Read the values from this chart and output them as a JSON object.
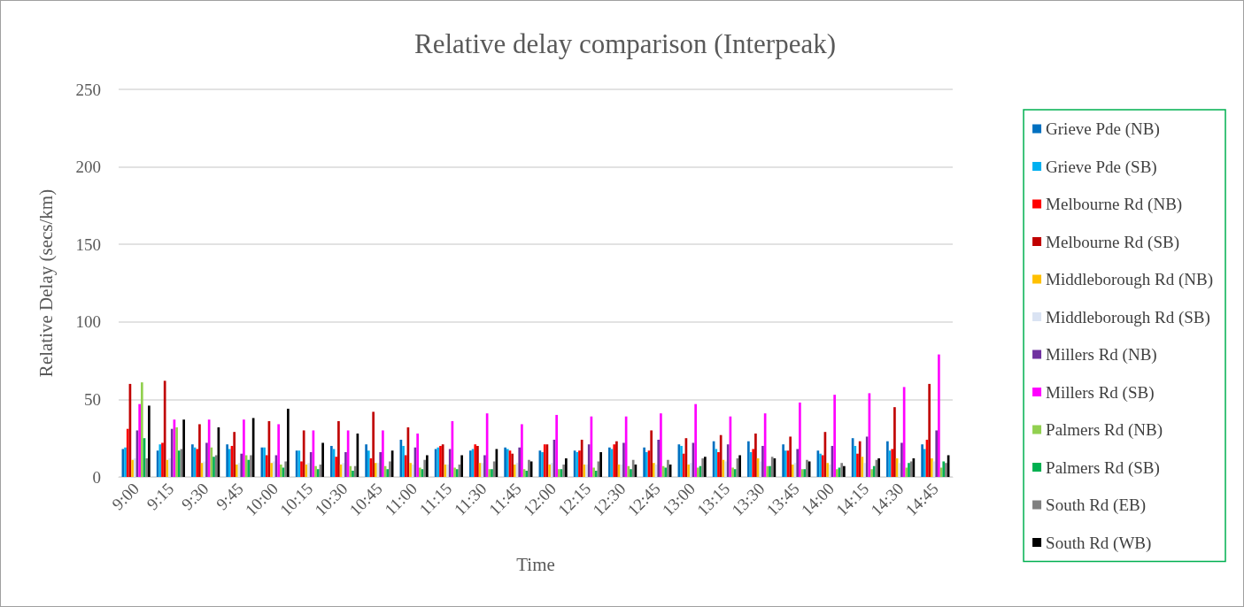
{
  "chart_data": {
    "type": "bar",
    "title": "Relative delay comparison (Interpeak)",
    "xlabel": "Time",
    "ylabel": "Relative Delay (secs/km)",
    "categories": [
      "9:00",
      "9:15",
      "9:30",
      "9:45",
      "10:00",
      "10:15",
      "10:30",
      "10:45",
      "11:00",
      "11:15",
      "11:30",
      "11:45",
      "12:00",
      "12:15",
      "12:30",
      "12:45",
      "13:00",
      "13:15",
      "13:30",
      "13:45",
      "14:00",
      "14:15",
      "14:30",
      "14:45"
    ],
    "series": [
      {
        "name": "Grieve Pde (NB)",
        "color": "#0070c0",
        "values": [
          18,
          17,
          21,
          21,
          19,
          17,
          20,
          21,
          24,
          18,
          17,
          19,
          17,
          17,
          19,
          19,
          21,
          23,
          23,
          21,
          17,
          25,
          23,
          21
        ]
      },
      {
        "name": "Grieve Pde (SB)",
        "color": "#00b0f0",
        "values": [
          19,
          21,
          19,
          18,
          19,
          17,
          18,
          17,
          20,
          19,
          18,
          18,
          16,
          16,
          18,
          16,
          20,
          18,
          16,
          17,
          15,
          20,
          17,
          18
        ]
      },
      {
        "name": "Melbourne Rd (NB)",
        "color": "#ff0000",
        "values": [
          31,
          22,
          18,
          20,
          14,
          10,
          13,
          12,
          14,
          20,
          21,
          17,
          21,
          17,
          21,
          17,
          15,
          16,
          18,
          17,
          14,
          15,
          18,
          24
        ]
      },
      {
        "name": "Melbourne Rd (SB)",
        "color": "#c00000",
        "values": [
          60,
          62,
          34,
          29,
          36,
          30,
          36,
          42,
          32,
          21,
          20,
          15,
          21,
          24,
          23,
          30,
          25,
          27,
          28,
          26,
          29,
          23,
          45,
          60
        ]
      },
      {
        "name": "Middleborough Rd (NB)",
        "color": "#ffc000",
        "values": [
          11,
          11,
          9,
          8,
          9,
          8,
          8,
          9,
          9,
          8,
          9,
          8,
          8,
          8,
          8,
          9,
          8,
          11,
          12,
          8,
          9,
          13,
          12,
          12
        ]
      },
      {
        "name": "Middleborough Rd (SB)",
        "color": "#dae3f3",
        "values": [
          12,
          12,
          10,
          9,
          10,
          9,
          9,
          9,
          8,
          8,
          9,
          9,
          9,
          8,
          8,
          8,
          9,
          10,
          10,
          9,
          8,
          9,
          9,
          10
        ]
      },
      {
        "name": "Millers Rd (NB)",
        "color": "#7030a0",
        "values": [
          30,
          31,
          22,
          15,
          14,
          16,
          16,
          16,
          19,
          18,
          14,
          19,
          24,
          21,
          22,
          24,
          22,
          21,
          20,
          18,
          20,
          26,
          22,
          30
        ]
      },
      {
        "name": "Millers Rd (SB)",
        "color": "#ff00ff",
        "values": [
          47,
          37,
          37,
          37,
          34,
          30,
          30,
          30,
          28,
          36,
          41,
          34,
          40,
          39,
          39,
          41,
          47,
          39,
          41,
          48,
          53,
          54,
          58,
          79
        ]
      },
      {
        "name": "Palmers Rd (NB)",
        "color": "#92d050",
        "values": [
          61,
          32,
          19,
          14,
          8,
          7,
          7,
          7,
          6,
          6,
          5,
          5,
          5,
          6,
          7,
          7,
          6,
          6,
          7,
          5,
          5,
          5,
          6,
          6
        ]
      },
      {
        "name": "Palmers Rd (SB)",
        "color": "#00b050",
        "values": [
          25,
          17,
          13,
          11,
          6,
          5,
          4,
          5,
          5,
          5,
          5,
          4,
          5,
          4,
          5,
          6,
          7,
          5,
          7,
          5,
          6,
          7,
          9,
          10
        ]
      },
      {
        "name": "South Rd (EB)",
        "color": "#808080",
        "values": [
          12,
          18,
          14,
          14,
          10,
          8,
          7,
          10,
          11,
          8,
          10,
          11,
          8,
          10,
          11,
          11,
          12,
          12,
          13,
          11,
          9,
          11,
          10,
          9
        ]
      },
      {
        "name": "South Rd (WB)",
        "color": "#000000",
        "values": [
          46,
          37,
          32,
          38,
          44,
          22,
          28,
          17,
          14,
          14,
          18,
          10,
          12,
          16,
          8,
          8,
          13,
          14,
          12,
          10,
          7,
          12,
          12,
          14
        ]
      }
    ],
    "ylim": [
      0,
      250
    ],
    "yticks": [
      0,
      50,
      100,
      150,
      200,
      250
    ],
    "grid": "y",
    "legend": "right"
  }
}
